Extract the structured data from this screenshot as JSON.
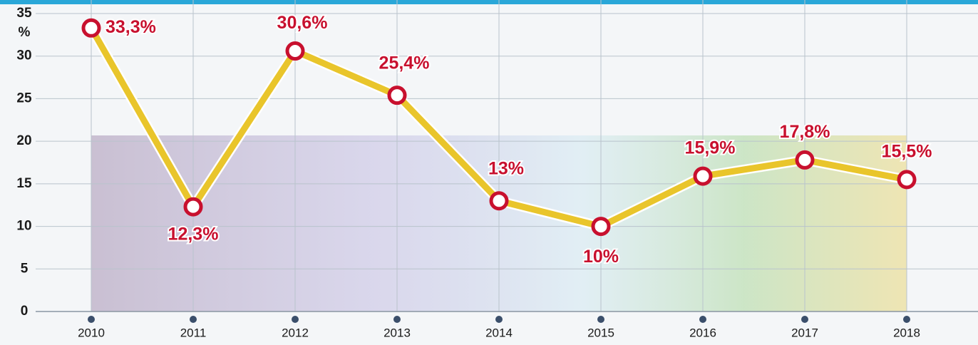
{
  "chart_data": {
    "type": "line",
    "ylabel": "%",
    "categories": [
      "2010",
      "2011",
      "2012",
      "2013",
      "2014",
      "2015",
      "2016",
      "2017",
      "2018"
    ],
    "values": [
      33.3,
      12.3,
      30.6,
      25.4,
      13,
      10,
      15.9,
      17.8,
      15.5
    ],
    "value_labels": [
      "33,3%",
      "12,3%",
      "30,6%",
      "25,4%",
      "13%",
      "10%",
      "15,9%",
      "17,8%",
      "15,5%"
    ],
    "color": "#e9c52b",
    "marker_color": "#c8102e",
    "ylim": [
      0,
      35
    ],
    "yticks": [
      0,
      5,
      10,
      15,
      20,
      25,
      30,
      35
    ],
    "grid": true
  }
}
